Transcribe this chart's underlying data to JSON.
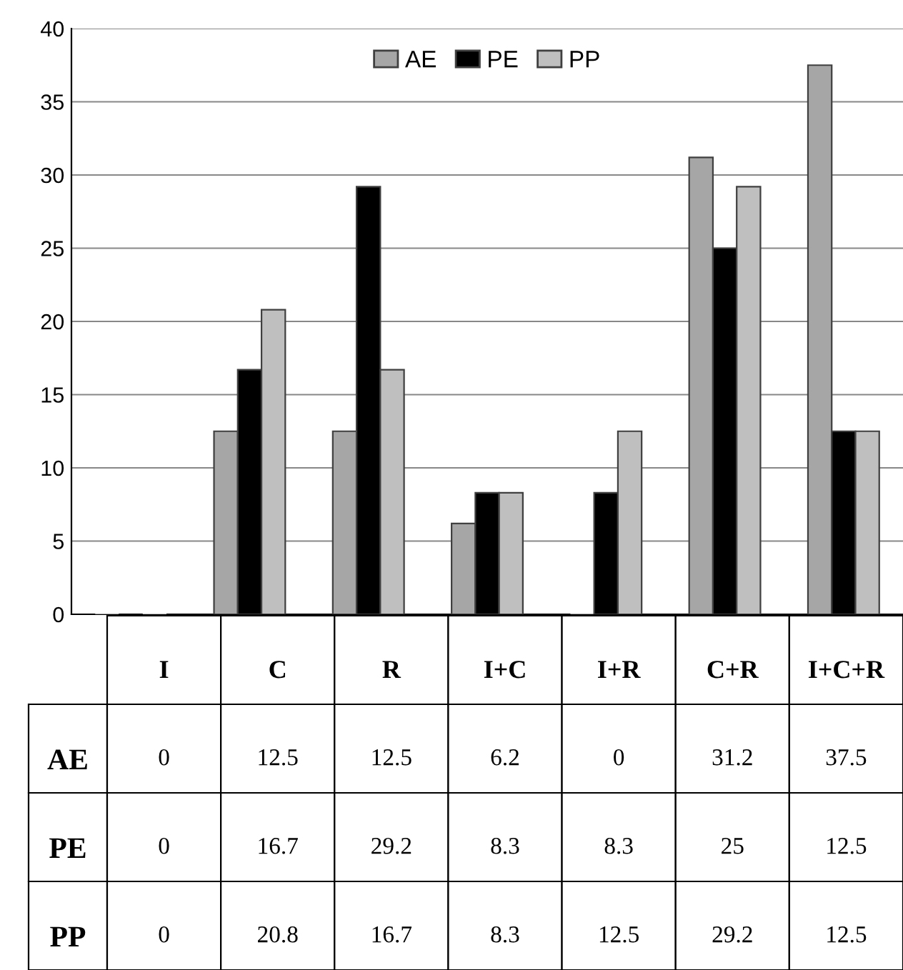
{
  "chart_data": {
    "type": "bar",
    "categories": [
      "I",
      "C",
      "R",
      "I+C",
      "I+R",
      "C+R",
      "I+C+R"
    ],
    "series": [
      {
        "name": "AE",
        "color": "#a6a6a6",
        "values": [
          0,
          12.5,
          12.5,
          6.2,
          0,
          31.2,
          37.5
        ]
      },
      {
        "name": "PE",
        "color": "#000000",
        "values": [
          0,
          16.7,
          29.2,
          8.3,
          8.3,
          25,
          12.5
        ]
      },
      {
        "name": "PP",
        "color": "#bfbfbf",
        "values": [
          0,
          20.8,
          16.7,
          8.3,
          12.5,
          29.2,
          12.5
        ]
      }
    ],
    "ylim": [
      0,
      40
    ],
    "yticks": [
      0,
      5,
      10,
      15,
      20,
      25,
      30,
      35,
      40
    ],
    "grid": "y",
    "legend": "top",
    "data_labels": true
  }
}
